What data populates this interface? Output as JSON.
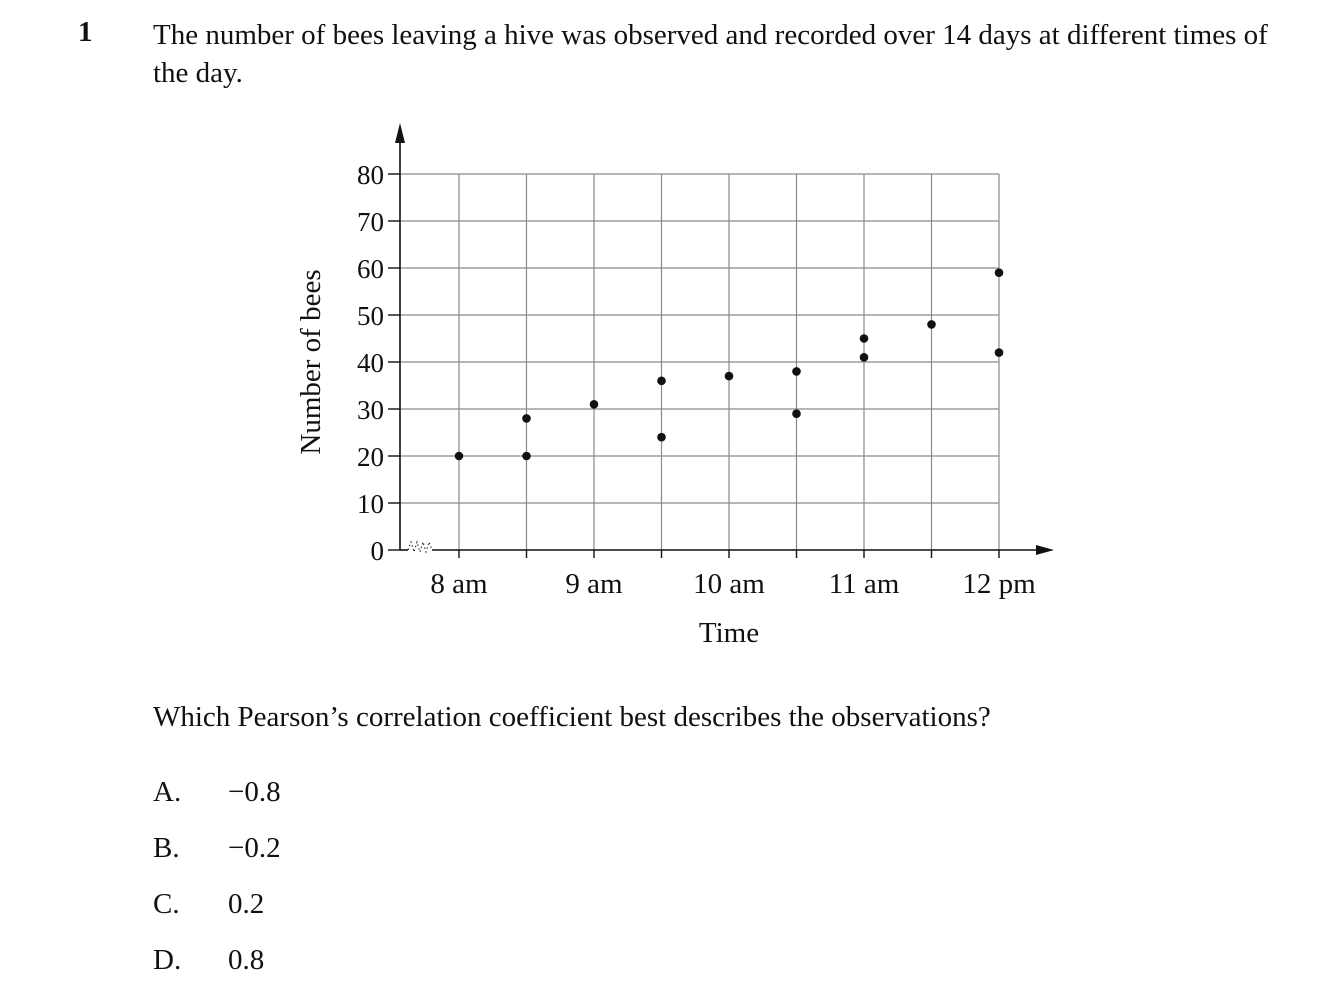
{
  "question": {
    "number": "1",
    "stem": "The number of bees leaving a hive was observed and recorded over 14 days at different times of the day.",
    "prompt": "Which Pearson’s correlation coefficient best describes the observations?"
  },
  "options": [
    {
      "letter": "A.",
      "value": "−0.8"
    },
    {
      "letter": "B.",
      "value": "−0.2"
    },
    {
      "letter": "C.",
      "value": "0.2"
    },
    {
      "letter": "D.",
      "value": "0.8"
    }
  ],
  "chart_data": {
    "type": "scatter",
    "title": "",
    "xlabel": "Time",
    "ylabel": "Number of bees",
    "x_tick_labels": [
      {
        "x": "8:00",
        "label": "8 am"
      },
      {
        "x": "9:00",
        "label": "9 am"
      },
      {
        "x": "10:00",
        "label": "10 am"
      },
      {
        "x": "11:00",
        "label": "11 am"
      },
      {
        "x": "12:00",
        "label": "12 pm"
      }
    ],
    "y_ticks": [
      0,
      10,
      20,
      30,
      40,
      50,
      60,
      70,
      80
    ],
    "ylim": [
      0,
      80
    ],
    "grid": true,
    "axis_break_on_x": true,
    "points": [
      {
        "x": "8:00",
        "y": 20
      },
      {
        "x": "8:30",
        "y": 28
      },
      {
        "x": "8:30",
        "y": 20
      },
      {
        "x": "9:00",
        "y": 31
      },
      {
        "x": "9:30",
        "y": 36
      },
      {
        "x": "9:30",
        "y": 24
      },
      {
        "x": "10:00",
        "y": 37
      },
      {
        "x": "10:30",
        "y": 38
      },
      {
        "x": "10:30",
        "y": 29
      },
      {
        "x": "11:00",
        "y": 45
      },
      {
        "x": "11:00",
        "y": 41
      },
      {
        "x": "11:30",
        "y": 48
      },
      {
        "x": "12:00",
        "y": 59
      },
      {
        "x": "12:00",
        "y": 42
      }
    ]
  }
}
